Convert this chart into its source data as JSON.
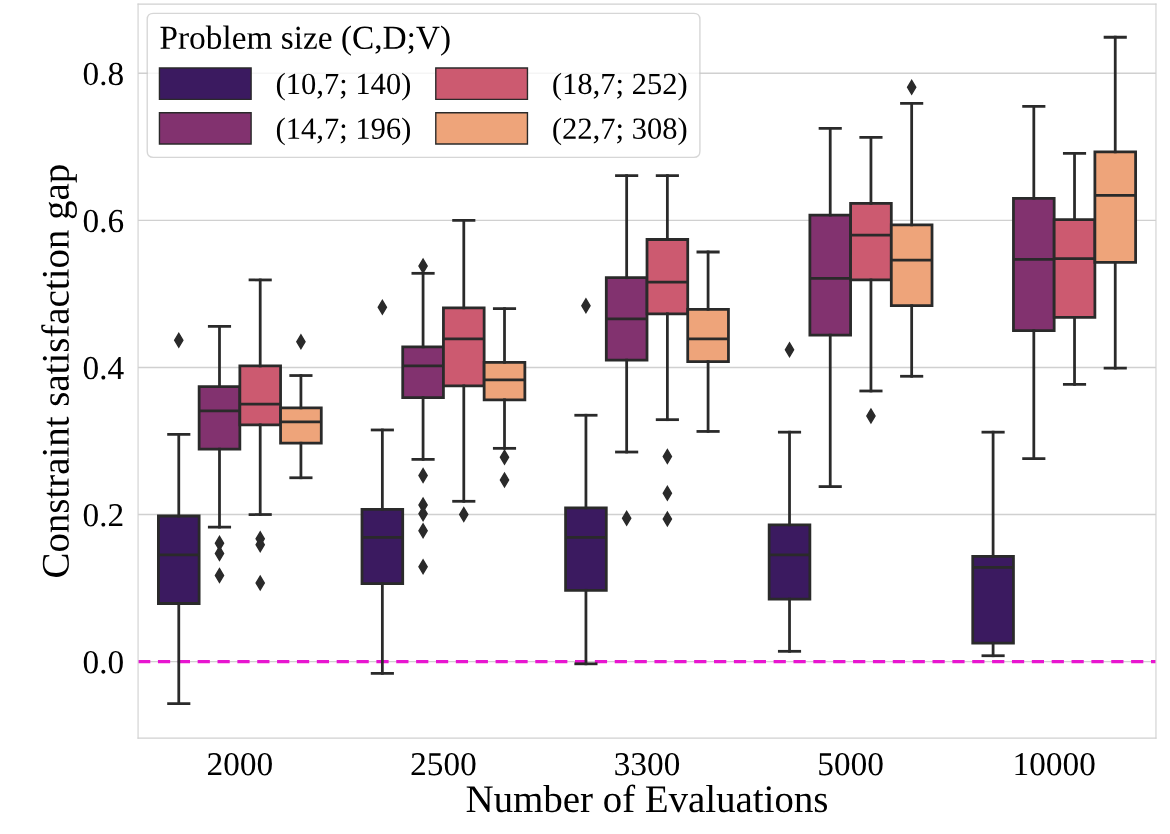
{
  "chart_data": {
    "type": "box",
    "xlabel": "Number of Evaluations",
    "ylabel": "Constraint satisfaction gap",
    "legend_title": "Problem size (C,D;V)",
    "categories": [
      "2000",
      "2500",
      "3300",
      "5000",
      "10000"
    ],
    "ylim": [
      -0.104,
      0.894
    ],
    "yticks": [
      {
        "value": 0,
        "label": "0.0"
      },
      0.2,
      0.4,
      0.6,
      0.8
    ],
    "grid": "y",
    "legend": "top left",
    "ref_lines": [
      {
        "axis": "y",
        "value": 0,
        "label": null,
        "color": "#e815d0",
        "line_style": "dashed"
      }
    ],
    "series": [
      {
        "name": "(10,7; 140)",
        "color": "#3b1a60",
        "boxes": [
          {
            "low": -0.057,
            "q1": 0.079,
            "median": 0.145,
            "q3": 0.198,
            "high": 0.309,
            "outliers": [
              0.437
            ]
          },
          {
            "low": -0.016,
            "q1": 0.106,
            "median": 0.169,
            "q3": 0.207,
            "high": 0.315,
            "outliers": [
              0.482
            ]
          },
          {
            "low": -0.003,
            "q1": 0.097,
            "median": 0.169,
            "q3": 0.209,
            "high": 0.335,
            "outliers": [
              0.484
            ]
          },
          {
            "low": 0.014,
            "q1": 0.085,
            "median": 0.145,
            "q3": 0.186,
            "high": 0.312,
            "outliers": [
              0.424
            ]
          },
          {
            "low": 0.008,
            "q1": 0.025,
            "median": 0.128,
            "q3": 0.143,
            "high": 0.312
          }
        ]
      },
      {
        "name": "(14,7; 196)",
        "color": "#82326f",
        "boxes": [
          {
            "low": 0.183,
            "q1": 0.289,
            "median": 0.341,
            "q3": 0.374,
            "high": 0.456,
            "outliers": [
              0.161,
              0.147,
              0.117
            ]
          },
          {
            "low": 0.275,
            "q1": 0.359,
            "median": 0.402,
            "q3": 0.428,
            "high": 0.528,
            "outliers": [
              0.538,
              0.253,
              0.213,
              0.201,
              0.178,
              0.129
            ]
          },
          {
            "low": 0.285,
            "q1": 0.41,
            "median": 0.466,
            "q3": 0.522,
            "high": 0.661,
            "outliers": [
              0.195
            ]
          },
          {
            "low": 0.238,
            "q1": 0.444,
            "median": 0.521,
            "q3": 0.607,
            "high": 0.725
          },
          {
            "low": 0.276,
            "q1": 0.45,
            "median": 0.547,
            "q3": 0.63,
            "high": 0.755
          }
        ]
      },
      {
        "name": "(18,7; 252)",
        "color": "#cc5a70",
        "boxes": [
          {
            "low": 0.2,
            "q1": 0.322,
            "median": 0.35,
            "q3": 0.402,
            "high": 0.519,
            "outliers": [
              0.167,
              0.159,
              0.107
            ]
          },
          {
            "low": 0.218,
            "q1": 0.375,
            "median": 0.439,
            "q3": 0.481,
            "high": 0.6,
            "outliers": [
              0.2
            ]
          },
          {
            "low": 0.329,
            "q1": 0.473,
            "median": 0.516,
            "q3": 0.574,
            "high": 0.661,
            "outliers": [
              0.279,
              0.229,
              0.194
            ]
          },
          {
            "low": 0.368,
            "q1": 0.519,
            "median": 0.58,
            "q3": 0.623,
            "high": 0.713,
            "outliers": [
              0.334
            ]
          },
          {
            "low": 0.377,
            "q1": 0.468,
            "median": 0.548,
            "q3": 0.601,
            "high": 0.691
          }
        ]
      },
      {
        "name": "(22,7; 308)",
        "color": "#eea47a",
        "boxes": [
          {
            "low": 0.25,
            "q1": 0.297,
            "median": 0.326,
            "q3": 0.345,
            "high": 0.389,
            "outliers": [
              0.435
            ]
          },
          {
            "low": 0.29,
            "q1": 0.356,
            "median": 0.383,
            "q3": 0.407,
            "high": 0.48,
            "outliers": [
              0.278,
              0.247
            ]
          },
          {
            "low": 0.313,
            "q1": 0.408,
            "median": 0.439,
            "q3": 0.479,
            "high": 0.557
          },
          {
            "low": 0.388,
            "q1": 0.484,
            "median": 0.546,
            "q3": 0.594,
            "high": 0.759,
            "outliers": [
              0.781
            ]
          },
          {
            "low": 0.399,
            "q1": 0.543,
            "median": 0.634,
            "q3": 0.693,
            "high": 0.849
          }
        ]
      }
    ]
  }
}
